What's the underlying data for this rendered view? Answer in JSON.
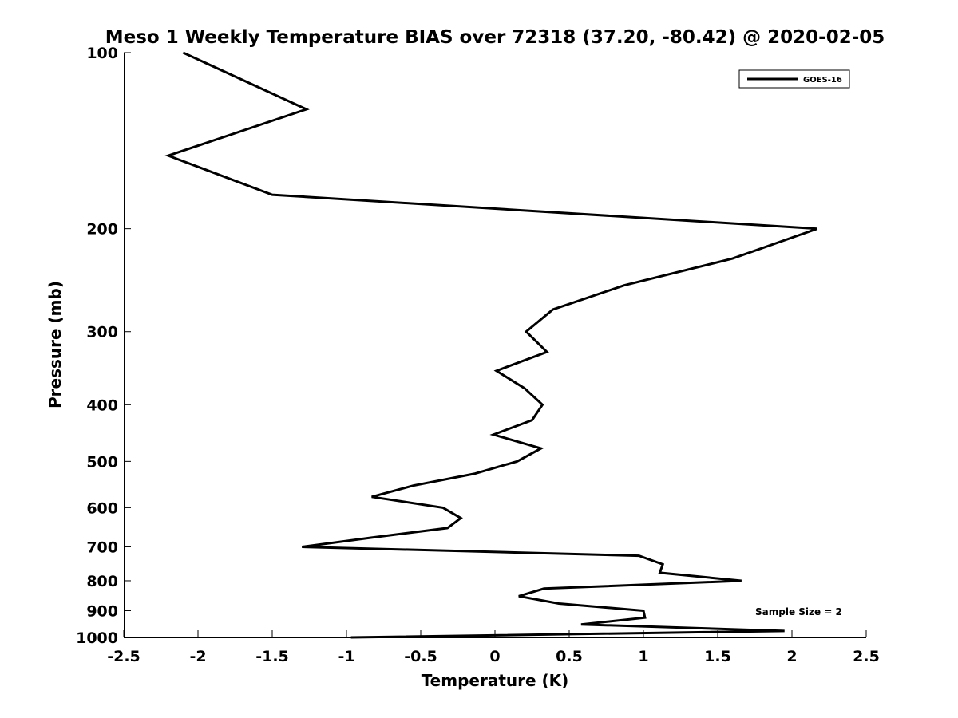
{
  "chart_data": {
    "type": "line",
    "title": "Meso 1 Weekly Temperature BIAS over 72318 (37.20, -80.42) @ 2020-02-05",
    "xlabel": "Temperature (K)",
    "ylabel": "Pressure (mb)",
    "xlim": [
      -2.5,
      2.5
    ],
    "ylim": [
      100,
      1000
    ],
    "y_scale": "log",
    "y_reversed": true,
    "grid": false,
    "legend_position": "top-right",
    "x_ticks": [
      {
        "value": -2.5,
        "label": "-2.5"
      },
      {
        "value": -2,
        "label": "-2"
      },
      {
        "value": -1.5,
        "label": "-1.5"
      },
      {
        "value": -1,
        "label": "-1"
      },
      {
        "value": -0.5,
        "label": "-0.5"
      },
      {
        "value": 0,
        "label": "0"
      },
      {
        "value": 0.5,
        "label": "0.5"
      },
      {
        "value": 1,
        "label": "1"
      },
      {
        "value": 1.5,
        "label": "1.5"
      },
      {
        "value": 2,
        "label": "2"
      },
      {
        "value": 2.5,
        "label": "2.5"
      }
    ],
    "y_ticks": [
      {
        "value": 100,
        "label": "100"
      },
      {
        "value": 200,
        "label": "200"
      },
      {
        "value": 300,
        "label": "300"
      },
      {
        "value": 400,
        "label": "400"
      },
      {
        "value": 500,
        "label": "500"
      },
      {
        "value": 600,
        "label": "600"
      },
      {
        "value": 700,
        "label": "700"
      },
      {
        "value": 800,
        "label": "800"
      },
      {
        "value": 900,
        "label": "900"
      },
      {
        "value": 1000,
        "label": "1000"
      }
    ],
    "series": [
      {
        "name": "GOES-16",
        "color": "#000000",
        "points": [
          {
            "x": -2.1,
            "y": 100
          },
          {
            "x": -1.27,
            "y": 125
          },
          {
            "x": -2.2,
            "y": 150
          },
          {
            "x": -1.5,
            "y": 175
          },
          {
            "x": 2.17,
            "y": 200
          },
          {
            "x": 1.6,
            "y": 225
          },
          {
            "x": 0.87,
            "y": 250
          },
          {
            "x": 0.39,
            "y": 275
          },
          {
            "x": 0.21,
            "y": 300
          },
          {
            "x": 0.35,
            "y": 325
          },
          {
            "x": 0.01,
            "y": 350
          },
          {
            "x": 0.2,
            "y": 375
          },
          {
            "x": 0.32,
            "y": 400
          },
          {
            "x": 0.25,
            "y": 425
          },
          {
            "x": -0.01,
            "y": 450
          },
          {
            "x": 0.31,
            "y": 475
          },
          {
            "x": 0.15,
            "y": 500
          },
          {
            "x": -0.14,
            "y": 525
          },
          {
            "x": -0.55,
            "y": 550
          },
          {
            "x": -0.83,
            "y": 575
          },
          {
            "x": -0.35,
            "y": 600
          },
          {
            "x": -0.23,
            "y": 625
          },
          {
            "x": -0.32,
            "y": 650
          },
          {
            "x": -0.83,
            "y": 675
          },
          {
            "x": -1.3,
            "y": 700
          },
          {
            "x": 0.97,
            "y": 725
          },
          {
            "x": 1.13,
            "y": 750
          },
          {
            "x": 1.11,
            "y": 775
          },
          {
            "x": 1.66,
            "y": 800
          },
          {
            "x": 0.33,
            "y": 825
          },
          {
            "x": 0.16,
            "y": 850
          },
          {
            "x": 0.43,
            "y": 875
          },
          {
            "x": 1.0,
            "y": 900
          },
          {
            "x": 1.01,
            "y": 925
          },
          {
            "x": 0.58,
            "y": 950
          },
          {
            "x": 1.95,
            "y": 975
          },
          {
            "x": -0.97,
            "y": 1000
          }
        ]
      }
    ],
    "annotations": [
      {
        "text": "Sample Size = 2"
      }
    ]
  }
}
